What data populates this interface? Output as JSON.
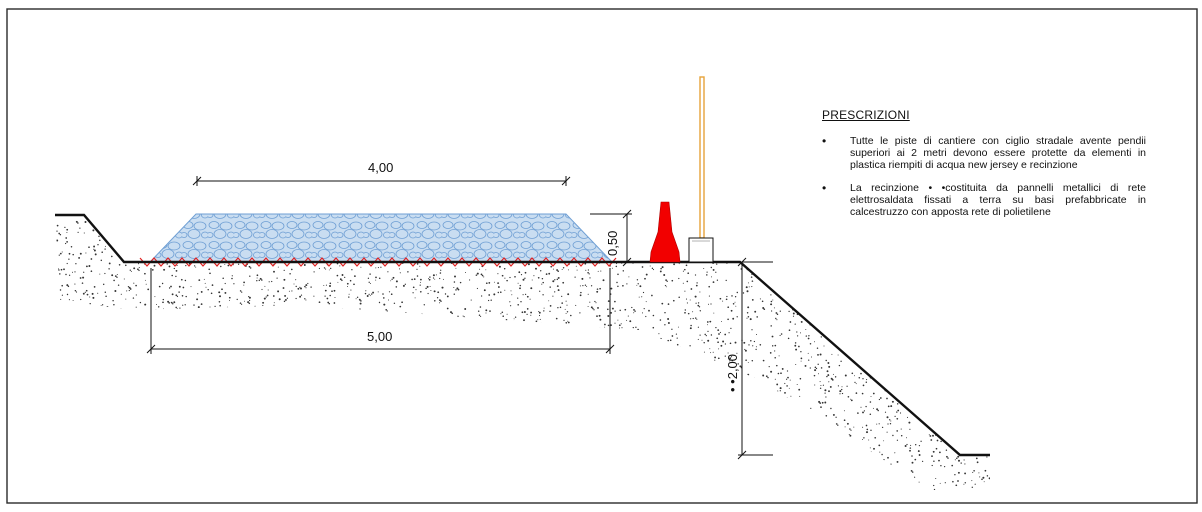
{
  "drawing": {
    "dimensions": {
      "top_width": "4,00",
      "base_width": "5,00",
      "height": "0,50",
      "embankment_height": "• •2,00"
    },
    "colors": {
      "frame": "#2a2a2a",
      "gravel": "#b9d3ec",
      "gravel_stroke": "#6f9fd4",
      "netting": "#e02020",
      "barrier": "#f20000",
      "pole": "#e6a33a",
      "soil_dots": "#333333"
    }
  },
  "prescriptions": {
    "title": "PRESCRIZIONI",
    "items": [
      {
        "bullet": "•",
        "text": "Tutte le piste di cantiere con ciglio stradale avente pendii superiori ai 2 metri devono essere protette da elementi in plastica riempiti di acqua new jersey e recinzione"
      },
      {
        "bullet": "•",
        "text": "La recinzione • •costituita da pannelli metallici di rete elettrosaldata fissati a terra su basi prefabbricate in calcestruzzo con apposta rete di polietilene"
      }
    ]
  }
}
